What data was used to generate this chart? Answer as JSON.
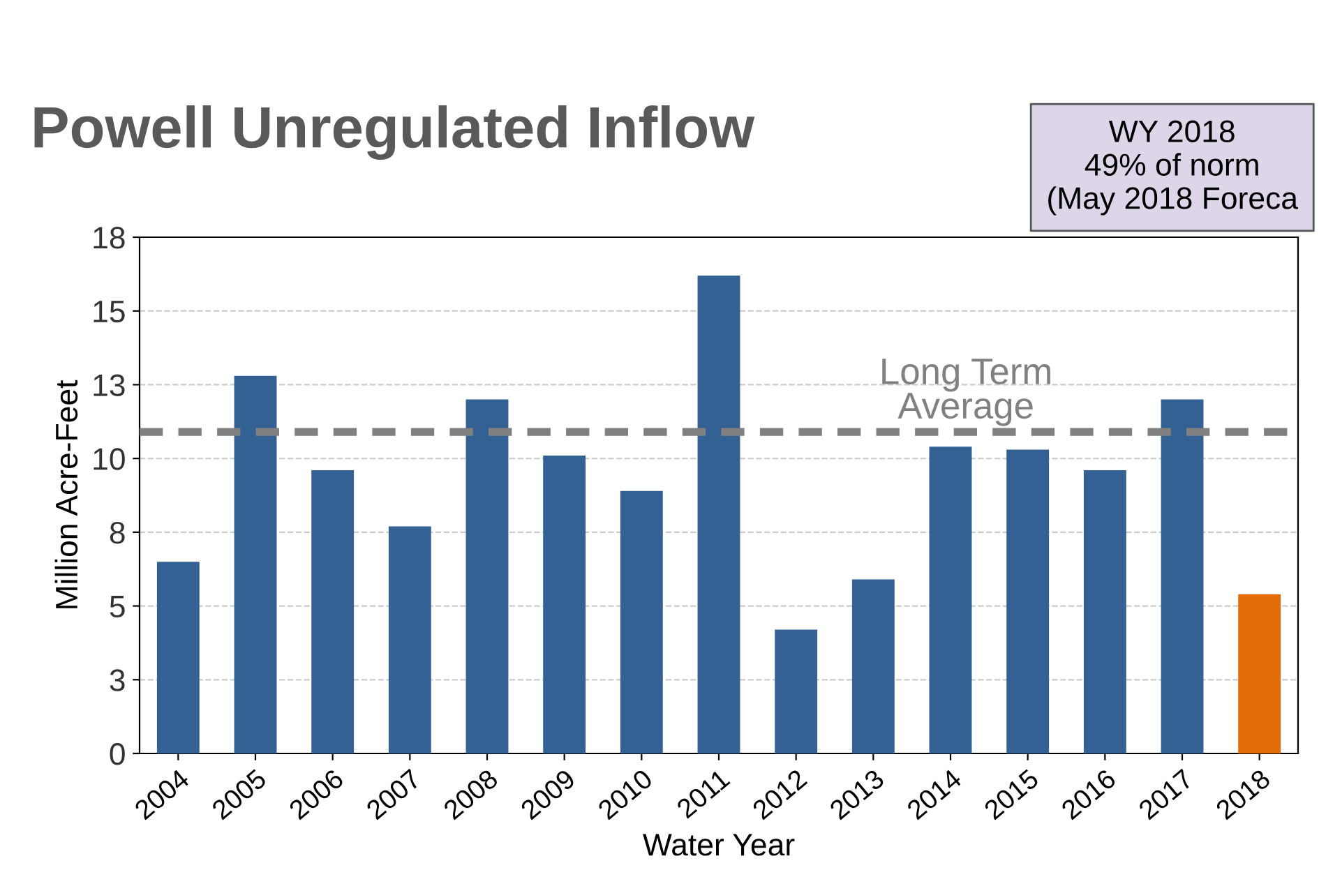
{
  "chart_data": {
    "type": "bar",
    "title": "Powell Unregulated Inflow",
    "xlabel": "Water Year",
    "ylabel": "Million Acre-Feet",
    "categories": [
      "2004",
      "2005",
      "2006",
      "2007",
      "2008",
      "2009",
      "2010",
      "2011",
      "2012",
      "2013",
      "2014",
      "2015",
      "2016",
      "2017",
      "2018"
    ],
    "values": [
      6.5,
      12.8,
      9.6,
      7.7,
      12.0,
      10.1,
      8.9,
      16.2,
      4.2,
      5.9,
      10.4,
      10.3,
      9.6,
      12.0,
      5.4
    ],
    "colors": [
      "#346193",
      "#346193",
      "#346193",
      "#346193",
      "#346193",
      "#346193",
      "#346193",
      "#346193",
      "#346193",
      "#346193",
      "#346193",
      "#346193",
      "#346193",
      "#346193",
      "#e36c0a"
    ],
    "ylim": [
      0,
      17.5
    ],
    "yticks": [
      0,
      {
        "value": 2.5,
        "label": "3"
      },
      5,
      {
        "value": 7.5,
        "label": "8"
      },
      10,
      {
        "value": 12.5,
        "label": "13"
      },
      15,
      {
        "value": 17.5,
        "label": "18"
      }
    ],
    "grid": "y",
    "ref_lines": [
      {
        "axis": "y",
        "value": 10.9,
        "label": "Long Term\nAverage",
        "color": "#808080",
        "line_style": "dashed"
      }
    ],
    "annotations": [
      "WY 2018\n49% of norm\n(May 2018 Foreca"
    ]
  }
}
